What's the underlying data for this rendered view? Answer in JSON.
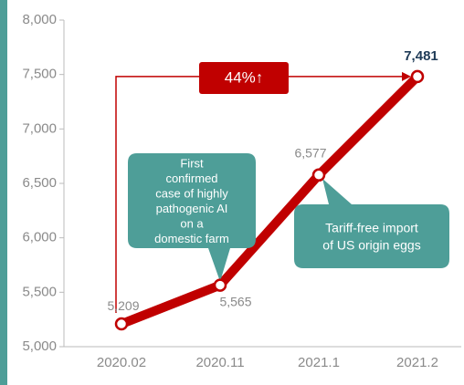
{
  "chart_data": {
    "type": "line",
    "categories": [
      "2020.02",
      "2020.11",
      "2021.1",
      "2021.2"
    ],
    "series": [
      {
        "color": "#c00000",
        "values": [
          5209,
          5565,
          6577,
          7481
        ],
        "value_labels": [
          "5,209",
          "5,565",
          "6,577",
          "7,481"
        ]
      }
    ],
    "ylim": [
      5000,
      8000
    ],
    "yticks": [
      {
        "value": 5000,
        "label": "5,000"
      },
      {
        "value": 5500,
        "label": "5,500"
      },
      {
        "value": 6000,
        "label": "6,000"
      },
      {
        "value": 6500,
        "label": "6,500"
      },
      {
        "value": 7000,
        "label": "7,000"
      },
      {
        "value": 7500,
        "label": "7,500"
      },
      {
        "value": 8000,
        "label": "8,000"
      }
    ],
    "annotations": [
      {
        "text": "44%↑",
        "color": "#c00000"
      },
      {
        "lines": [
          "First",
          "confirmed",
          "case of highly",
          "pathogenic AI",
          "on a",
          "domestic farm"
        ],
        "color": "#4e9e98"
      },
      {
        "lines": [
          "Tariff-free import",
          "of US origin eggs"
        ],
        "color": "#4e9e98"
      }
    ]
  }
}
